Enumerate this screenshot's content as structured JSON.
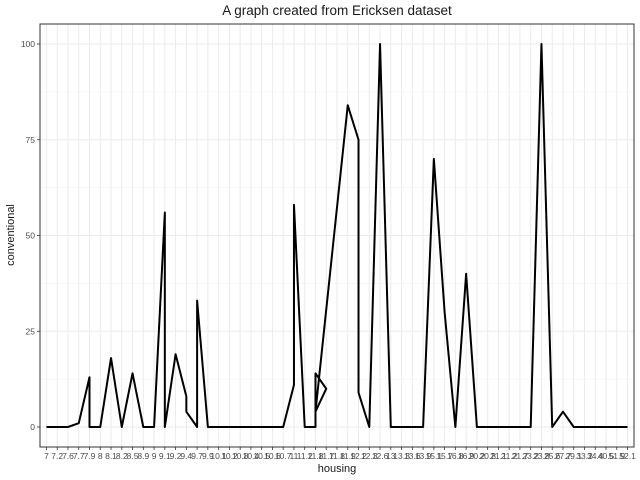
{
  "chart_data": {
    "type": "line",
    "title": "A graph created from Ericksen dataset",
    "xlabel": "housing",
    "ylabel": "conventional",
    "ylim": [
      0,
      100
    ],
    "y_ticks": [
      0,
      25,
      50,
      75,
      100
    ],
    "grid": true,
    "line_color": "#000000",
    "x_categories": [
      "7",
      "7.2",
      "7.6",
      "7.7",
      "7.9",
      "8",
      "8.1",
      "8.2",
      "8.5",
      "8.9",
      "9",
      "9.1",
      "9.2",
      "9.4",
      "9.7",
      "9.9",
      "10.1",
      "10.2",
      "10.8",
      "10.4",
      "10.5",
      "10.6",
      "10.7",
      "11",
      "11.2",
      "11.8",
      "11.7",
      "11.8",
      "11.9",
      "12.2",
      "12.3",
      "12.6",
      "13",
      "13.3",
      "13.6",
      "13.9",
      "15.1",
      "15.7",
      "16.8",
      "16.9",
      "20.2",
      "20.8",
      "21.1",
      "21.2",
      "21.7",
      "23.2",
      "23.8",
      "25.6",
      "27.7",
      "29.1",
      "33.2",
      "34.4",
      "40.5",
      "51.9",
      "52.1"
    ],
    "points": [
      {
        "x": "7",
        "y": 0
      },
      {
        "x": "7.6",
        "y": 0
      },
      {
        "x": "7.7",
        "y": 1
      },
      {
        "x": "7.9",
        "y": 13
      },
      {
        "x": "7.9",
        "y": 0
      },
      {
        "x": "8",
        "y": 0
      },
      {
        "x": "8.1",
        "y": 18
      },
      {
        "x": "8.2",
        "y": 0
      },
      {
        "x": "8.5",
        "y": 14
      },
      {
        "x": "8.9",
        "y": 0
      },
      {
        "x": "9",
        "y": 0
      },
      {
        "x": "9.1",
        "y": 56
      },
      {
        "x": "9.1",
        "y": 0
      },
      {
        "x": "9.2",
        "y": 19
      },
      {
        "x": "9.4",
        "y": 8
      },
      {
        "x": "9.4",
        "y": 4
      },
      {
        "x": "9.7",
        "y": 0
      },
      {
        "x": "9.7",
        "y": 33
      },
      {
        "x": "9.9",
        "y": 0
      },
      {
        "x": "10.7",
        "y": 0
      },
      {
        "x": "11",
        "y": 11
      },
      {
        "x": "11",
        "y": 58
      },
      {
        "x": "11.2",
        "y": 0
      },
      {
        "x": "11.8",
        "y": 0
      },
      {
        "x": "11.8",
        "y": 14
      },
      {
        "x": "11.7",
        "y": 10
      },
      {
        "x": "11.8",
        "y": 4
      },
      {
        "x": "11.9",
        "y": 84
      },
      {
        "x": "12.2",
        "y": 75
      },
      {
        "x": "12.2",
        "y": 9
      },
      {
        "x": "12.3",
        "y": 0
      },
      {
        "x": "12.6",
        "y": 100
      },
      {
        "x": "13",
        "y": 0
      },
      {
        "x": "13.9",
        "y": 0
      },
      {
        "x": "15.1",
        "y": 70
      },
      {
        "x": "15.7",
        "y": 30
      },
      {
        "x": "16.8",
        "y": 0
      },
      {
        "x": "16.9",
        "y": 40
      },
      {
        "x": "20.2",
        "y": 0
      },
      {
        "x": "23.2",
        "y": 0
      },
      {
        "x": "23.8",
        "y": 100
      },
      {
        "x": "25.6",
        "y": 0
      },
      {
        "x": "27.7",
        "y": 4
      },
      {
        "x": "29.1",
        "y": 0
      },
      {
        "x": "52.1",
        "y": 0
      }
    ]
  }
}
